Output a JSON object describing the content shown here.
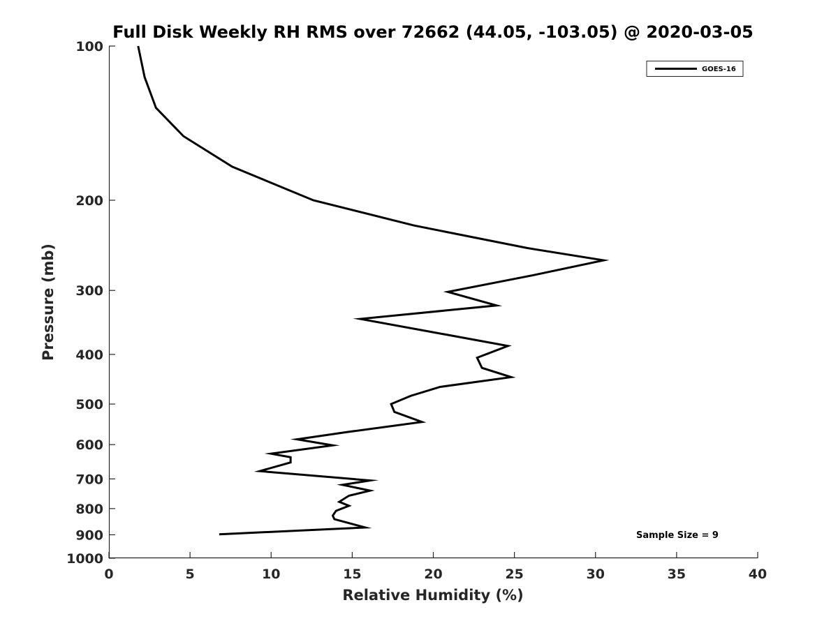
{
  "chart_data": {
    "type": "line",
    "title": "Full Disk Weekly RH RMS over 72662 (44.05, -103.05) @ 2020-03-05",
    "xlabel": "Relative Humidity (%)",
    "ylabel": "Pressure (mb)",
    "xlim": [
      0,
      40
    ],
    "ylim": [
      100,
      1000
    ],
    "y_scale": "log",
    "y_reversed": true,
    "x_ticks": [
      0,
      5,
      10,
      15,
      20,
      25,
      30,
      35,
      40
    ],
    "y_ticks": [
      100,
      200,
      300,
      400,
      500,
      600,
      700,
      800,
      900,
      1000
    ],
    "grid": false,
    "legend_position": "top-right",
    "annotation": "Sample Size = 9",
    "series": [
      {
        "name": "GOES-16",
        "color": "#000000",
        "points": [
          [
            1.8,
            100
          ],
          [
            2.2,
            115
          ],
          [
            2.9,
            132
          ],
          [
            4.6,
            150
          ],
          [
            7.6,
            172
          ],
          [
            12.6,
            200
          ],
          [
            18.8,
            224
          ],
          [
            25.8,
            248
          ],
          [
            30.5,
            262
          ],
          [
            26.2,
            280
          ],
          [
            20.9,
            302
          ],
          [
            23.9,
            321
          ],
          [
            15.5,
            341
          ],
          [
            20.6,
            365
          ],
          [
            24.6,
            385
          ],
          [
            22.7,
            406
          ],
          [
            23.0,
            425
          ],
          [
            24.8,
            443
          ],
          [
            20.4,
            463
          ],
          [
            18.6,
            482
          ],
          [
            17.4,
            500
          ],
          [
            17.6,
            518
          ],
          [
            19.3,
            542
          ],
          [
            14.7,
            567
          ],
          [
            11.6,
            586
          ],
          [
            13.8,
            602
          ],
          [
            10.0,
            625
          ],
          [
            11.2,
            635
          ],
          [
            11.2,
            650
          ],
          [
            9.3,
            676
          ],
          [
            16.1,
            705
          ],
          [
            14.4,
            719
          ],
          [
            16.1,
            738
          ],
          [
            14.8,
            755
          ],
          [
            14.2,
            776
          ],
          [
            14.8,
            790
          ],
          [
            14.0,
            808
          ],
          [
            13.8,
            826
          ],
          [
            13.9,
            839
          ],
          [
            15.8,
            871
          ],
          [
            6.8,
            898
          ]
        ]
      }
    ]
  }
}
